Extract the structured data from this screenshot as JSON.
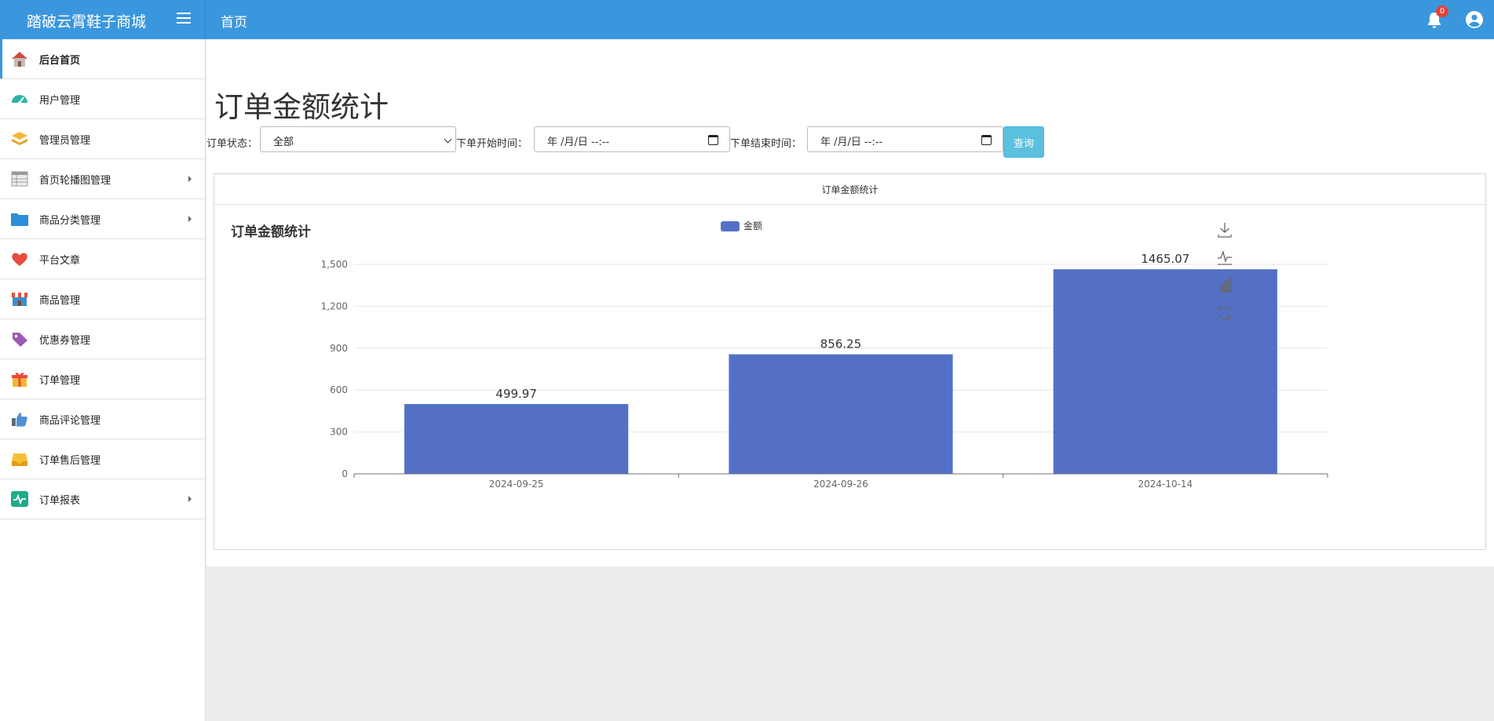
{
  "header": {
    "brand": "踏破云霄鞋子商城",
    "page_label": "首页",
    "notification_count": "0"
  },
  "sidebar": {
    "items": [
      {
        "label": "后台首页",
        "icon": "house-icon",
        "has_submenu": false,
        "active": true
      },
      {
        "label": "用户管理",
        "icon": "speedometer-icon",
        "has_submenu": false,
        "active": false
      },
      {
        "label": "管理员管理",
        "icon": "stack-icon",
        "has_submenu": false,
        "active": false
      },
      {
        "label": "首页轮播图管理",
        "icon": "table-icon",
        "has_submenu": true,
        "active": false
      },
      {
        "label": "商品分类管理",
        "icon": "folder-icon",
        "has_submenu": true,
        "active": false
      },
      {
        "label": "平台文章",
        "icon": "heart-icon",
        "has_submenu": false,
        "active": false
      },
      {
        "label": "商品管理",
        "icon": "store-icon",
        "has_submenu": false,
        "active": false
      },
      {
        "label": "优惠券管理",
        "icon": "tag-icon",
        "has_submenu": false,
        "active": false
      },
      {
        "label": "订单管理",
        "icon": "gift-icon",
        "has_submenu": false,
        "active": false
      },
      {
        "label": "商品评论管理",
        "icon": "thumbs-up-icon",
        "has_submenu": false,
        "active": false
      },
      {
        "label": "订单售后管理",
        "icon": "inbox-icon",
        "has_submenu": false,
        "active": false
      },
      {
        "label": "订单报表",
        "icon": "activity-icon",
        "has_submenu": true,
        "active": false
      }
    ]
  },
  "main": {
    "title": "订单金额统计",
    "filters": {
      "status_label": "订单状态：",
      "status_value": "全部",
      "start_label": "下单开始时间：",
      "start_value": "年 /月/日 --:--",
      "end_label": "下单结束时间：",
      "end_value": "年 /月/日 --:--",
      "query_label": "查询"
    },
    "panel_heading": "订单金额统计"
  },
  "colors": {
    "header_bg": "#3b97dd",
    "bar": "#5470c6",
    "button": "#5bc0de"
  },
  "chart_data": {
    "type": "bar",
    "title": "订单金额统计",
    "categories": [
      "2024-09-25",
      "2024-09-26",
      "2024-10-14"
    ],
    "series": [
      {
        "name": "金额",
        "values": [
          499.97,
          856.25,
          1465.07
        ]
      }
    ],
    "y_ticks": [
      "0",
      "300",
      "600",
      "900",
      "1,200",
      "1,500"
    ],
    "ylim": [
      0,
      1500
    ],
    "grid": true,
    "legend_position": "top-center",
    "toolbox": [
      "download-icon",
      "line-chart-icon",
      "bar-chart-icon",
      "refresh-icon"
    ]
  }
}
